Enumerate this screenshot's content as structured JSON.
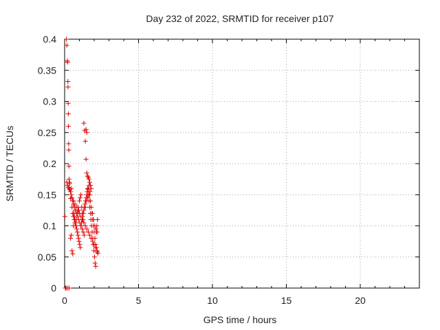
{
  "chart_data": {
    "type": "scatter",
    "title": "Day 232 of 2022, SRMTID for receiver p107",
    "xlabel": "GPS time / hours",
    "ylabel": "SRMTID / TECUs",
    "xlim": [
      0,
      24
    ],
    "ylim": [
      0,
      0.4
    ],
    "xticks": [
      0,
      5,
      10,
      15,
      20
    ],
    "yticks": [
      0,
      0.05,
      0.1,
      0.15,
      0.2,
      0.25,
      0.3,
      0.35,
      0.4
    ],
    "xtick_labels": [
      "0",
      "5",
      "10",
      "15",
      "20"
    ],
    "ytick_labels": [
      "0",
      "0.05",
      "0.1",
      "0.15",
      "0.2",
      "0.25",
      "0.3",
      "0.35",
      "0.4"
    ],
    "grid": true,
    "marker": "+",
    "color": "#e00000",
    "series": [
      {
        "x": [
          0.02,
          0.05,
          0.08,
          0.12,
          0.15,
          0.18,
          0.2,
          0.22,
          0.23,
          0.24,
          0.25,
          0.26,
          0.27,
          0.28,
          0.29,
          0.3,
          0.32,
          0.35,
          0.4,
          0.45,
          0.5,
          0.55,
          0.6,
          0.65,
          0.7,
          0.75,
          0.8,
          0.85,
          0.9,
          0.95,
          1.0,
          1.05,
          1.1,
          1.15,
          1.2,
          1.25,
          1.3,
          1.35,
          1.4,
          1.45,
          1.5,
          1.55,
          1.6,
          1.65,
          1.7,
          1.75,
          1.8,
          1.85,
          1.9,
          1.95,
          2.0,
          2.05,
          2.1,
          2.15,
          2.2,
          2.25,
          0.1,
          0.2,
          0.3,
          0.4,
          0.45,
          0.5,
          0.55,
          0.6,
          0.62,
          0.66,
          0.7,
          0.74,
          0.78,
          0.82,
          0.86,
          0.9,
          0.94,
          0.98,
          1.02,
          1.06,
          1.1,
          1.14,
          1.18,
          1.22,
          1.26,
          1.3,
          1.34,
          1.38,
          1.42,
          1.46,
          1.5,
          1.54,
          1.58,
          1.62,
          1.66,
          1.7,
          1.74,
          1.78,
          1.82,
          1.86,
          1.9,
          1.94,
          1.98,
          2.02,
          2.06,
          2.1,
          2.14,
          2.18,
          2.22,
          0.55,
          0.6,
          0.65,
          0.72,
          0.8,
          0.88,
          0.95,
          1.02,
          1.1,
          1.18,
          1.26,
          1.32,
          1.4,
          1.48,
          1.56,
          1.64,
          1.72,
          1.8,
          1.88,
          1.96,
          2.04,
          2.12,
          2.2,
          0.15,
          0.2,
          0.25,
          0.3,
          0.35,
          0.4,
          0.45,
          0.5,
          0.6,
          0.7,
          0.8,
          0.9,
          1.0,
          1.1,
          1.2,
          1.3,
          1.4,
          1.5,
          1.6,
          1.7,
          1.8,
          1.9,
          2.0,
          2.1,
          2.2,
          1.45,
          1.5,
          1.55,
          1.6,
          1.65,
          1.7,
          1.75
        ],
        "y": [
          0.115,
          0.0,
          0.0,
          0.4,
          0.39,
          0.365,
          0.363,
          0.332,
          0.323,
          0.297,
          0.28,
          0.26,
          0.232,
          0.222,
          0.196,
          0.175,
          0.17,
          0.168,
          0.144,
          0.16,
          0.13,
          0.12,
          0.115,
          0.11,
          0.105,
          0.1,
          0.11,
          0.12,
          0.13,
          0.125,
          0.14,
          0.145,
          0.15,
          0.13,
          0.12,
          0.11,
          0.265,
          0.253,
          0.236,
          0.207,
          0.185,
          0.16,
          0.158,
          0.165,
          0.15,
          0.14,
          0.13,
          0.12,
          0.11,
          0.1,
          0.09,
          0.08,
          0.07,
          0.065,
          0.058,
          0.056,
          0.0,
          0.0,
          0.0,
          0.08,
          0.085,
          0.06,
          0.055,
          0.1,
          0.12,
          0.115,
          0.11,
          0.105,
          0.1,
          0.095,
          0.09,
          0.085,
          0.08,
          0.075,
          0.07,
          0.065,
          0.1,
          0.105,
          0.11,
          0.115,
          0.12,
          0.125,
          0.13,
          0.135,
          0.14,
          0.145,
          0.15,
          0.155,
          0.16,
          0.15,
          0.14,
          0.13,
          0.12,
          0.11,
          0.1,
          0.09,
          0.08,
          0.07,
          0.06,
          0.05,
          0.04,
          0.035,
          0.09,
          0.1,
          0.11,
          0.14,
          0.135,
          0.13,
          0.125,
          0.12,
          0.115,
          0.11,
          0.105,
          0.1,
          0.095,
          0.09,
          0.085,
          0.13,
          0.14,
          0.145,
          0.15,
          0.155,
          0.16,
          0.12,
          0.11,
          0.1,
          0.095,
          0.09,
          0.17,
          0.165,
          0.162,
          0.16,
          0.158,
          0.155,
          0.15,
          0.145,
          0.14,
          0.135,
          0.13,
          0.125,
          0.12,
          0.115,
          0.11,
          0.105,
          0.1,
          0.095,
          0.09,
          0.085,
          0.08,
          0.075,
          0.07,
          0.065,
          0.06,
          0.255,
          0.25,
          0.18,
          0.178,
          0.175,
          0.17,
          0.165
        ]
      }
    ]
  }
}
